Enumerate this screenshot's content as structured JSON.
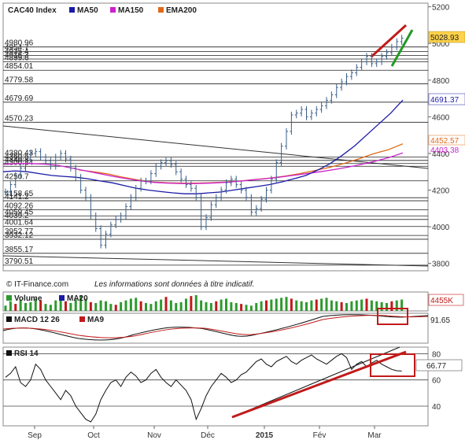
{
  "chart_data": {
    "type": "line",
    "title": "CAC40 Index",
    "legend": [
      {
        "name": "MA50",
        "color": "#1a1aa6"
      },
      {
        "name": "MA150",
        "color": "#cc22cc"
      },
      {
        "name": "EMA200",
        "color": "#e06a1a"
      }
    ],
    "price_axis": {
      "ylim": [
        3760,
        5220
      ],
      "ticks": [
        3800,
        4000,
        4200,
        4400,
        4600,
        4800,
        5000,
        5200
      ]
    },
    "x_ticks": [
      "Sep",
      "Oct",
      "Nov",
      "Déc",
      "2015",
      "Fév",
      "Mar"
    ],
    "support_levels": [
      {
        "label": "4980.96",
        "value": 4980.96
      },
      {
        "label": "4954.7",
        "value": 4956
      },
      {
        "label": "4935.4",
        "value": 4935
      },
      {
        "label": "4916.3",
        "value": 4915
      },
      {
        "label": "4899.6",
        "value": 4900
      },
      {
        "label": "4854.01",
        "value": 4854.01
      },
      {
        "label": "4779.58",
        "value": 4779.58
      },
      {
        "label": "4679.69",
        "value": 4679.69
      },
      {
        "label": "4570.23",
        "value": 4570.23
      },
      {
        "label": "4380.43",
        "value": 4380.43
      },
      {
        "label": "4360.5",
        "value": 4362
      },
      {
        "label": "4340.3",
        "value": 4345
      },
      {
        "label": "4300.34",
        "value": 4330
      },
      {
        "label": "4250.7",
        "value": 4250.7
      },
      {
        "label": "4158.65",
        "value": 4158.65
      },
      {
        "label": "4141.2",
        "value": 4142
      },
      {
        "label": "4092.26",
        "value": 4092.26
      },
      {
        "label": "4059.45",
        "value": 4059.45
      },
      {
        "label": "4039.2",
        "value": 4040
      },
      {
        "label": "4001.64",
        "value": 4001.64
      },
      {
        "label": "3952.77",
        "value": 3952.77
      },
      {
        "label": "3932.12",
        "value": 3932.12
      },
      {
        "label": "3855.17",
        "value": 3855.17
      },
      {
        "label": "3790.51",
        "value": 3790.51
      }
    ],
    "price_series": [
      4190,
      4230,
      4280,
      4320,
      4370,
      4400,
      4410,
      4380,
      4360,
      4330,
      4380,
      4400,
      4370,
      4320,
      4270,
      4200,
      4160,
      4060,
      3990,
      3900,
      3960,
      4010,
      4040,
      4060,
      4110,
      4160,
      4210,
      4250,
      4250,
      4290,
      4330,
      4350,
      4360,
      4340,
      4300,
      4260,
      4230,
      4210,
      4160,
      4000,
      4050,
      4120,
      4160,
      4200,
      4240,
      4260,
      4230,
      4200,
      4160,
      4080,
      4100,
      4150,
      4200,
      4260,
      4350,
      4440,
      4520,
      4610,
      4620,
      4640,
      4600,
      4620,
      4640,
      4660,
      4690,
      4720,
      4760,
      4790,
      4820,
      4840,
      4870,
      4900,
      4930,
      4890,
      4900,
      4930,
      4950,
      4980,
      5010,
      5028.93
    ],
    "ma50": [
      4300,
      4305,
      4300,
      4290,
      4280,
      4275,
      4270,
      4262,
      4250,
      4240,
      4225,
      4210,
      4200,
      4192,
      4185,
      4180,
      4180,
      4185,
      4190,
      4200,
      4210,
      4220,
      4230,
      4245,
      4262,
      4280,
      4310,
      4345,
      4390,
      4440,
      4500,
      4560,
      4620,
      4691.37
    ],
    "ma150": [
      4340,
      4345,
      4345,
      4342,
      4335,
      4320,
      4305,
      4290,
      4275,
      4262,
      4250,
      4242,
      4238,
      4236,
      4236,
      4238,
      4242,
      4248,
      4255,
      4262,
      4270,
      4280,
      4290,
      4300,
      4312,
      4325,
      4340,
      4358,
      4378,
      4403
    ],
    "ema200": [
      4310,
      4300,
      4288,
      4270,
      4256,
      4245,
      4240,
      4238,
      4238,
      4240,
      4244,
      4250,
      4258,
      4266,
      4276,
      4290,
      4306,
      4324,
      4345,
      4370,
      4398,
      4420,
      4452.57
    ],
    "last_labels": {
      "close": "5028.93",
      "ma50": "4691.37",
      "ema200": "4452.57",
      "ma150": "4403.38"
    },
    "volume": {
      "label": "Volume",
      "ma_label": "MA20",
      "last": "4455K",
      "bars": [
        30,
        55,
        40,
        65,
        45,
        50,
        70,
        60,
        40,
        35,
        60,
        80,
        55,
        45,
        65,
        90,
        70,
        50,
        45,
        60,
        55,
        40,
        35,
        50,
        60,
        70,
        75,
        55,
        45,
        40,
        55,
        65,
        80,
        60,
        45,
        50,
        70,
        85,
        90,
        60,
        50,
        45,
        55,
        65,
        70,
        50,
        45,
        40,
        35,
        30,
        45,
        55,
        60,
        65,
        70,
        75,
        80,
        70,
        60,
        55,
        50,
        60,
        65,
        70,
        75,
        60,
        55,
        50,
        45,
        55,
        60,
        65,
        70,
        60,
        55,
        50,
        45,
        55,
        60,
        65
      ]
    },
    "macd": {
      "label": "MACD 12 26",
      "signal_label": "MA9",
      "last": "91.65"
    },
    "rsi": {
      "label": "RSI 14",
      "last": "66.77",
      "ylim": [
        25,
        85
      ],
      "ticks": [
        40,
        60,
        80
      ],
      "values": [
        62,
        65,
        70,
        58,
        55,
        60,
        72,
        68,
        60,
        55,
        50,
        45,
        52,
        48,
        40,
        35,
        30,
        28,
        34,
        45,
        52,
        58,
        60,
        55,
        62,
        66,
        63,
        58,
        60,
        65,
        68,
        62,
        58,
        55,
        60,
        56,
        52,
        45,
        30,
        38,
        48,
        55,
        60,
        65,
        62,
        58,
        60,
        64,
        66,
        70,
        74,
        76,
        72,
        70,
        74,
        76,
        78,
        74,
        72,
        75,
        77,
        79,
        76,
        74,
        72,
        75,
        78,
        80,
        77,
        68,
        72,
        74,
        70,
        73,
        75,
        72,
        70,
        68,
        67,
        66.77
      ]
    },
    "copyright": "© IT-Finance.com",
    "disclaimer": "Les informations sont données à titre indicatif."
  }
}
